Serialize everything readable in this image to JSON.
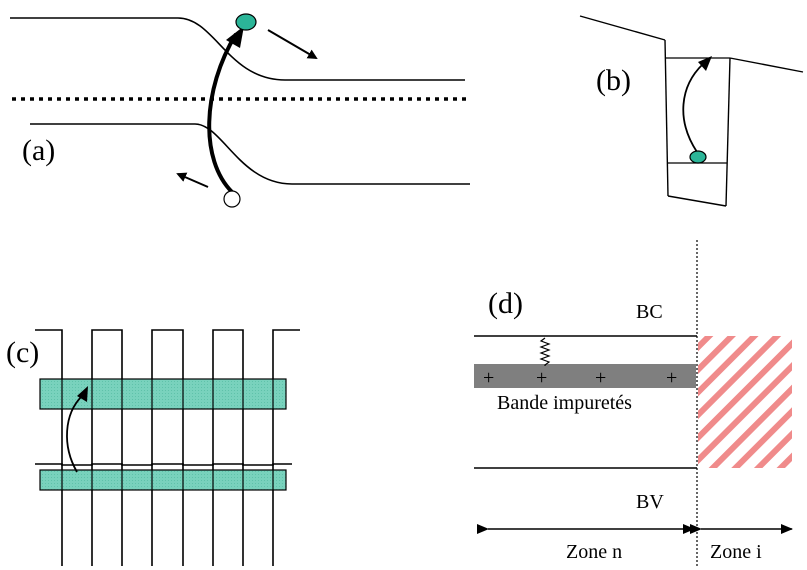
{
  "colors": {
    "teal": "#2bb598",
    "band_fill": "#79d2bd",
    "impurity_band": "#7f7f7f",
    "hatch": "#f08b8b",
    "line": "#000000",
    "background": "#ffffff"
  },
  "panel_a": {
    "label": "(a)"
  },
  "panel_b": {
    "label": "(b)"
  },
  "panel_c": {
    "label": "(c)"
  },
  "panel_d": {
    "label": "(d)",
    "bc_label": "BC",
    "bv_label": "BV",
    "impurity_label": "Bande impuretés",
    "zone_n_label": "Zone n",
    "zone_i_label": "Zone i",
    "plus_sign": "+"
  }
}
